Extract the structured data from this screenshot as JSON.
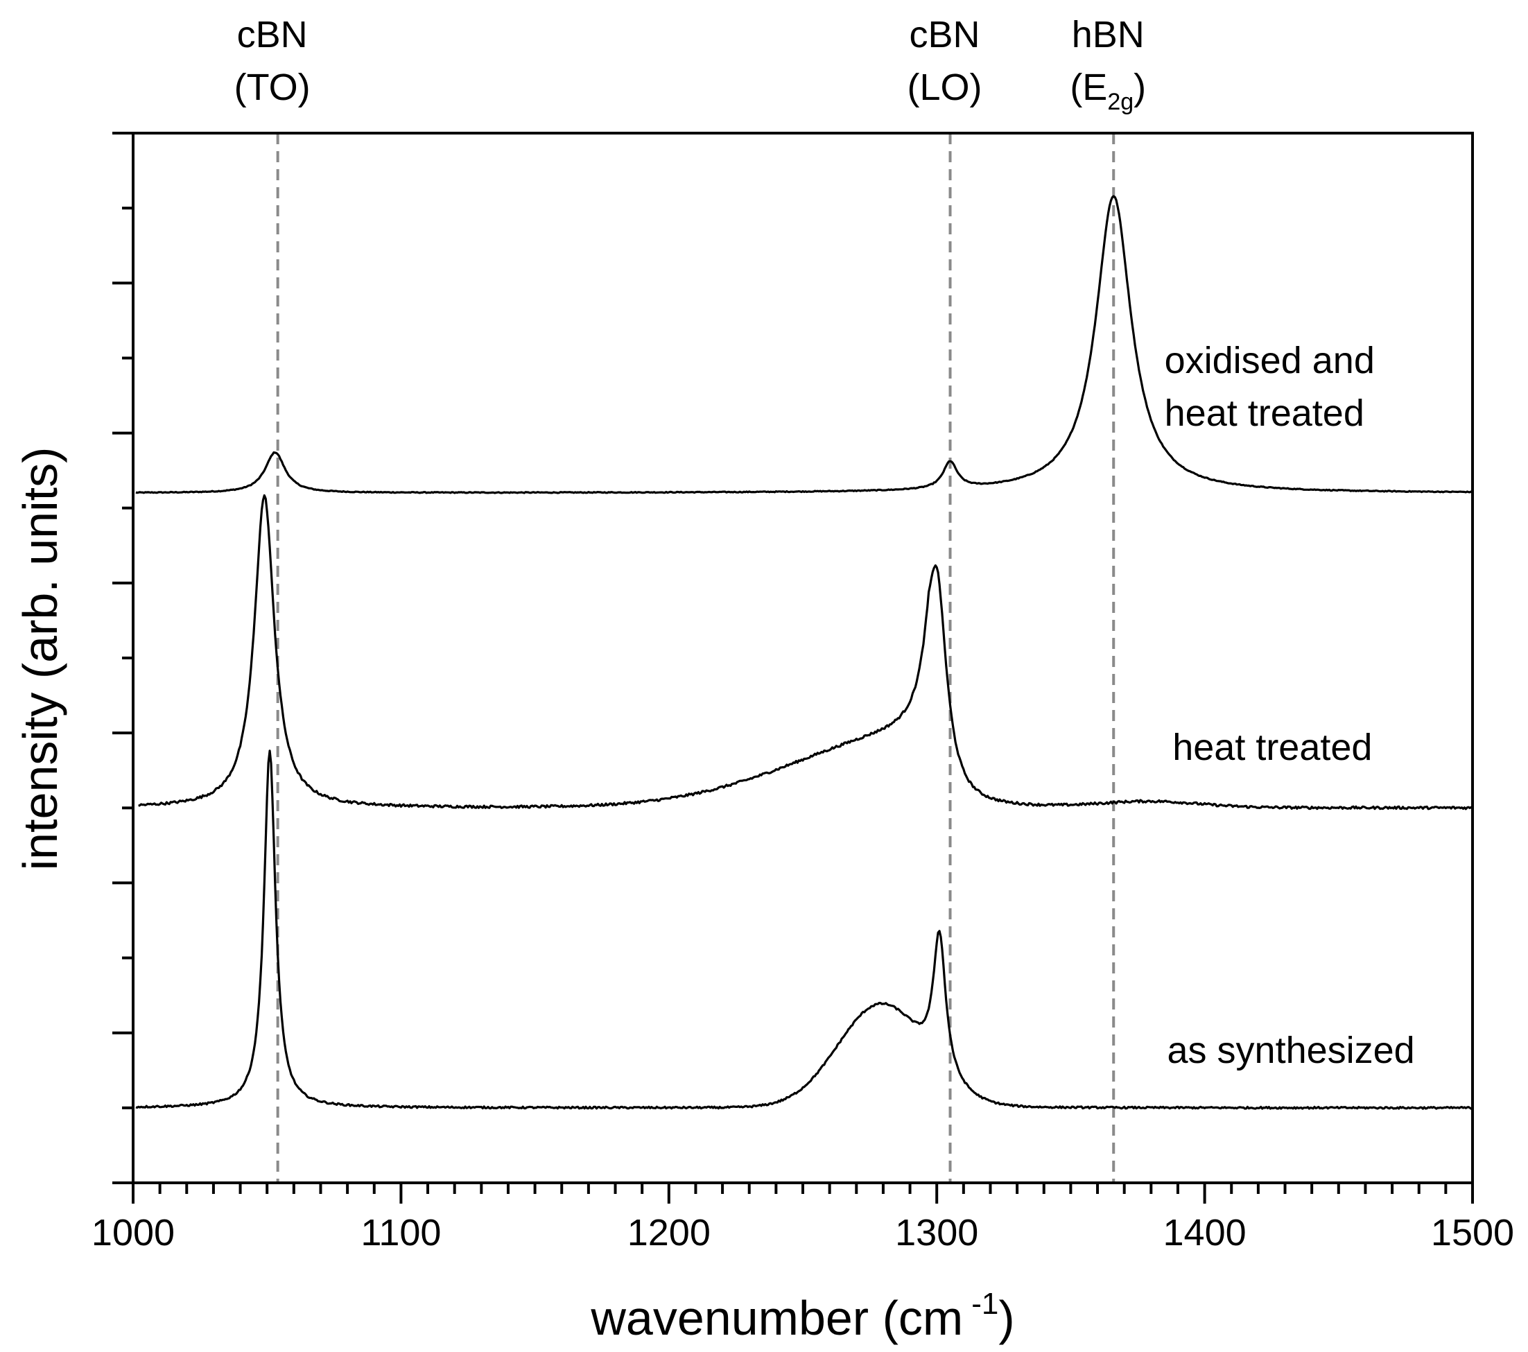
{
  "chart_data": {
    "type": "line",
    "title": "",
    "xlabel": "wavenumber (cm",
    "xlabel_superscript": "-1",
    "xlabel_close": ")",
    "ylabel": "intensity (arb. units)",
    "xlim": [
      1000,
      1500
    ],
    "ylim": [
      0,
      7
    ],
    "xticks": [
      1000,
      1100,
      1200,
      1300,
      1400,
      1500
    ],
    "xtick_labels": [
      "1000",
      "1100",
      "1200",
      "1300",
      "1400",
      "1500"
    ],
    "xminor_step": 10,
    "yticks": [
      0.5,
      1.0,
      1.5,
      2.0,
      2.5,
      3.0,
      3.5,
      4.0,
      4.5,
      5.0,
      5.5,
      6.0,
      6.5
    ],
    "ytick_labels_shown": false,
    "grid": false,
    "line_color": "#000000",
    "reference_line_color": "#8a8a8a",
    "reference_lines": [
      {
        "x": 1054,
        "label_line1": "cBN",
        "label_line2": "(TO)",
        "label_sub": ""
      },
      {
        "x": 1305,
        "label_line1": "cBN",
        "label_line2": "(LO)",
        "label_sub": ""
      },
      {
        "x": 1366,
        "label_line1": "hBN",
        "label_line2": "(E",
        "label_sub": "2g",
        "label_close": ")"
      }
    ],
    "series": [
      {
        "name": "oxidised and heat treated",
        "label_lines": [
          "oxidised and",
          "heat treated"
        ],
        "label_x": 1385,
        "label_y": [
          5.4,
          5.05
        ],
        "baseline": 4.6,
        "noise": 0.003,
        "x_start": 1001,
        "components": [
          {
            "kind": "lorentz",
            "center": 1053,
            "amp": 0.27,
            "width": 4.5
          },
          {
            "kind": "lorentz",
            "center": 1305,
            "amp": 0.18,
            "width": 3.2
          },
          {
            "kind": "lorentz",
            "center": 1366,
            "amp": 1.98,
            "width": 8.0
          }
        ],
        "points": [
          [
            1000,
            4.6
          ],
          [
            1040,
            4.61
          ],
          [
            1048,
            4.7
          ],
          [
            1053,
            4.87
          ],
          [
            1058,
            4.72
          ],
          [
            1070,
            4.61
          ],
          [
            1200,
            4.6
          ],
          [
            1295,
            4.62
          ],
          [
            1305,
            4.78
          ],
          [
            1315,
            4.63
          ],
          [
            1340,
            4.72
          ],
          [
            1360,
            5.7
          ],
          [
            1366,
            6.58
          ],
          [
            1372,
            5.8
          ],
          [
            1390,
            4.75
          ],
          [
            1500,
            4.6
          ]
        ]
      },
      {
        "name": "heat treated",
        "label_lines": [
          "heat treated"
        ],
        "label_x": 1388,
        "label_y": [
          2.82
        ],
        "baseline": 2.5,
        "noise": 0.008,
        "x_start": 1002,
        "components": [
          {
            "kind": "lorentz",
            "center": 1049,
            "amp": 2.08,
            "width": 4.5
          },
          {
            "kind": "lorentz",
            "center": 1300,
            "amp": 1.38,
            "width": 4.5
          },
          {
            "kind": "shoulder",
            "center": 1292,
            "amp": 0.48,
            "width": 45,
            "cutoff": 1297,
            "drop": 4
          },
          {
            "kind": "gauss",
            "center": 1380,
            "amp": 0.04,
            "width": 18
          }
        ],
        "points": [
          [
            1002,
            2.49
          ],
          [
            1030,
            2.56
          ],
          [
            1042,
            3.1
          ],
          [
            1049,
            4.55
          ],
          [
            1055,
            3.2
          ],
          [
            1065,
            2.53
          ],
          [
            1200,
            2.5
          ],
          [
            1240,
            2.65
          ],
          [
            1270,
            2.9
          ],
          [
            1290,
            3.05
          ],
          [
            1300,
            3.87
          ],
          [
            1305,
            3.1
          ],
          [
            1312,
            2.55
          ],
          [
            1380,
            2.54
          ],
          [
            1500,
            2.52
          ]
        ]
      },
      {
        "name": "as synthesized",
        "label_lines": [
          "as synthesized"
        ],
        "label_x": 1386,
        "label_y": [
          0.8
        ],
        "baseline": 0.5,
        "noise": 0.006,
        "x_start": 1001,
        "components": [
          {
            "kind": "lorentz",
            "center": 1051,
            "amp": 2.38,
            "width": 2.6
          },
          {
            "kind": "gauss",
            "center": 1279,
            "amp": 0.68,
            "width": 16
          },
          {
            "kind": "lorentz",
            "center": 1301,
            "amp": 0.92,
            "width": 2.8
          }
        ],
        "points": [
          [
            1001,
            0.5
          ],
          [
            1038,
            0.52
          ],
          [
            1046,
            1.2
          ],
          [
            1051,
            2.88
          ],
          [
            1056,
            1.3
          ],
          [
            1062,
            0.52
          ],
          [
            1200,
            0.5
          ],
          [
            1240,
            0.66
          ],
          [
            1270,
            1.12
          ],
          [
            1280,
            1.18
          ],
          [
            1294,
            1.06
          ],
          [
            1301,
            1.42
          ],
          [
            1308,
            0.75
          ],
          [
            1316,
            0.51
          ],
          [
            1500,
            0.5
          ]
        ]
      }
    ]
  }
}
